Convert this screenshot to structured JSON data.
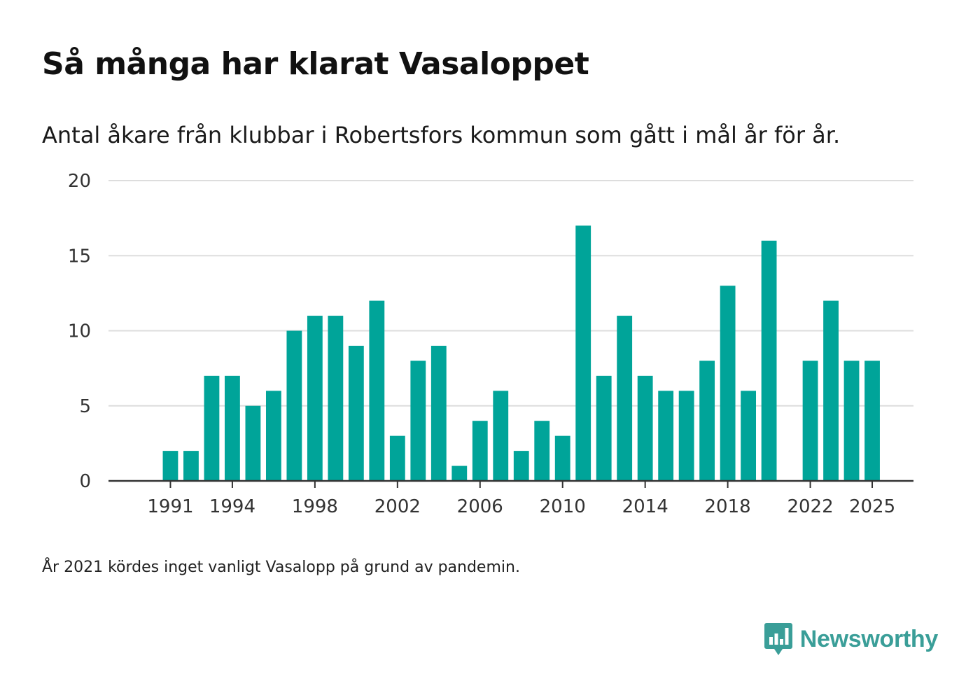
{
  "title": "Så många har klarat Vasaloppet",
  "subtitle": "Antal åkare från klubbar i Robertsfors kommun som gått i mål år för år.",
  "footnote": "År 2021 kördes inget vanligt Vasalopp på grund av pandemin.",
  "brand": {
    "name": "Newsworthy",
    "icon": "bar-chart-speech-bubble-icon",
    "color": "#3a9e98"
  },
  "colors": {
    "bar": "#00a499",
    "grid": "#dddddd",
    "axis": "#333333"
  },
  "chart_data": {
    "type": "bar",
    "title": "Så många har klarat Vasaloppet",
    "subtitle": "Antal åkare från klubbar i Robertsfors kommun som gått i mål år för år.",
    "xlabel": "",
    "ylabel": "",
    "ylim": [
      0,
      20
    ],
    "yticks": [
      0,
      5,
      10,
      15,
      20
    ],
    "grid": true,
    "xlim": [
      1988,
      2027
    ],
    "xticks": [
      1991,
      1994,
      1998,
      2002,
      2006,
      2010,
      2014,
      2018,
      2022,
      2025
    ],
    "x": [
      1991,
      1992,
      1993,
      1994,
      1995,
      1996,
      1997,
      1998,
      1999,
      2000,
      2001,
      2002,
      2003,
      2004,
      2005,
      2006,
      2007,
      2008,
      2009,
      2010,
      2011,
      2012,
      2013,
      2014,
      2015,
      2016,
      2017,
      2018,
      2019,
      2020,
      2022,
      2023,
      2024,
      2025
    ],
    "values": [
      2,
      2,
      7,
      7,
      5,
      6,
      10,
      11,
      11,
      9,
      12,
      3,
      8,
      9,
      1,
      4,
      6,
      2,
      4,
      3,
      17,
      7,
      11,
      7,
      6,
      6,
      8,
      13,
      6,
      16,
      8,
      12,
      8,
      8
    ]
  }
}
